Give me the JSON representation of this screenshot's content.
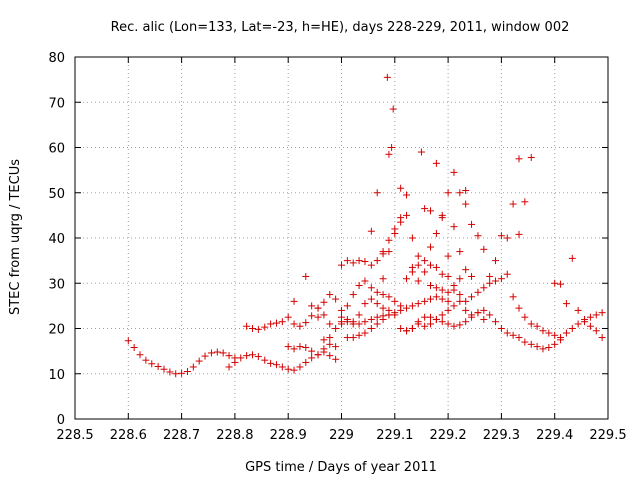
{
  "chart_data": {
    "type": "scatter",
    "title": "Rec. alic (Lon=133, Lat=-23, h=HE), days 228-229, 2011, window 002",
    "xlabel": "GPS time / Days of year 2011",
    "ylabel": "STEC from uqrg / TECUs",
    "xlim": [
      228.5,
      229.5
    ],
    "ylim": [
      0,
      80
    ],
    "xticks": [
      228.5,
      228.6,
      228.7,
      228.8,
      228.9,
      229,
      229.1,
      229.2,
      229.3,
      229.4,
      229.5
    ],
    "xtick_labels": [
      "228.5",
      "228.6",
      "228.7",
      "228.8",
      "228.9",
      "229",
      "229.1",
      "229.2",
      "229.3",
      "229.4",
      "229.5"
    ],
    "yticks": [
      0,
      10,
      20,
      30,
      40,
      50,
      60,
      70,
      80
    ],
    "ytick_labels": [
      "0",
      "10",
      "20",
      "30",
      "40",
      "50",
      "60",
      "70",
      "80"
    ],
    "grid": true,
    "marker": "+",
    "color": "#d40000",
    "series": [
      {
        "name": "STEC",
        "points": [
          [
            228.6,
            17.3
          ],
          [
            228.611,
            15.8
          ],
          [
            228.622,
            14.2
          ],
          [
            228.633,
            13.0
          ],
          [
            228.644,
            12.2
          ],
          [
            228.656,
            11.6
          ],
          [
            228.667,
            11.0
          ],
          [
            228.678,
            10.4
          ],
          [
            228.689,
            10.0
          ],
          [
            228.7,
            10.1
          ],
          [
            228.711,
            10.5
          ],
          [
            228.722,
            11.5
          ],
          [
            228.733,
            12.8
          ],
          [
            228.744,
            13.9
          ],
          [
            228.756,
            14.6
          ],
          [
            228.767,
            14.8
          ],
          [
            228.778,
            14.6
          ],
          [
            228.789,
            14.0
          ],
          [
            228.8,
            13.5
          ],
          [
            228.789,
            11.5
          ],
          [
            228.8,
            12.5
          ],
          [
            228.811,
            13.5
          ],
          [
            228.822,
            14.0
          ],
          [
            228.833,
            14.2
          ],
          [
            228.844,
            13.8
          ],
          [
            228.856,
            13.0
          ],
          [
            228.867,
            12.3
          ],
          [
            228.878,
            12.0
          ],
          [
            228.889,
            11.5
          ],
          [
            228.9,
            11.0
          ],
          [
            228.911,
            10.8
          ],
          [
            228.922,
            11.5
          ],
          [
            228.933,
            12.5
          ],
          [
            228.944,
            13.5
          ],
          [
            228.956,
            14.2
          ],
          [
            228.967,
            14.8
          ],
          [
            228.978,
            14.0
          ],
          [
            228.989,
            13.2
          ],
          [
            228.822,
            20.5
          ],
          [
            228.833,
            20.0
          ],
          [
            228.844,
            19.8
          ],
          [
            228.856,
            20.3
          ],
          [
            228.867,
            21.0
          ],
          [
            228.878,
            21.2
          ],
          [
            228.889,
            21.5
          ],
          [
            228.9,
            22.5
          ],
          [
            228.911,
            21.0
          ],
          [
            228.922,
            20.5
          ],
          [
            228.933,
            21.3
          ],
          [
            228.944,
            22.8
          ],
          [
            228.956,
            24.5
          ],
          [
            228.967,
            25.8
          ],
          [
            228.978,
            27.5
          ],
          [
            228.989,
            26.5
          ],
          [
            228.9,
            16.0
          ],
          [
            228.911,
            15.5
          ],
          [
            228.922,
            16.0
          ],
          [
            228.933,
            15.8
          ],
          [
            228.944,
            15.0
          ],
          [
            228.956,
            14.2
          ],
          [
            228.967,
            15.5
          ],
          [
            228.978,
            16.5
          ],
          [
            228.989,
            16.0
          ],
          [
            228.911,
            26.0
          ],
          [
            228.933,
            31.5
          ],
          [
            228.944,
            25.0
          ],
          [
            228.956,
            24.5
          ],
          [
            228.967,
            23.0
          ],
          [
            228.978,
            21.0
          ],
          [
            228.989,
            20.0
          ],
          [
            228.956,
            22.5
          ],
          [
            228.978,
            18.0
          ],
          [
            228.967,
            17.5
          ],
          [
            229.0,
            21.0
          ],
          [
            229.011,
            22.0
          ],
          [
            229.022,
            21.5
          ],
          [
            229.033,
            21.0
          ],
          [
            229.044,
            21.5
          ],
          [
            229.056,
            22.0
          ],
          [
            229.067,
            22.5
          ],
          [
            229.078,
            22.8
          ],
          [
            229.089,
            23.0
          ],
          [
            229.1,
            23.5
          ],
          [
            229.111,
            24.0
          ],
          [
            229.122,
            24.5
          ],
          [
            229.133,
            25.0
          ],
          [
            229.144,
            25.5
          ],
          [
            229.156,
            26.0
          ],
          [
            229.167,
            26.5
          ],
          [
            229.178,
            27.0
          ],
          [
            229.189,
            26.5
          ],
          [
            229.2,
            26.0
          ],
          [
            229.0,
            24.0
          ],
          [
            229.011,
            25.0
          ],
          [
            229.022,
            27.5
          ],
          [
            229.033,
            29.5
          ],
          [
            229.044,
            30.5
          ],
          [
            229.056,
            29.0
          ],
          [
            229.067,
            28.0
          ],
          [
            229.078,
            27.5
          ],
          [
            229.089,
            27.0
          ],
          [
            229.1,
            26.0
          ],
          [
            229.111,
            25.0
          ],
          [
            229.0,
            34.0
          ],
          [
            229.011,
            35.0
          ],
          [
            229.022,
            34.5
          ],
          [
            229.033,
            35.0
          ],
          [
            229.044,
            34.8
          ],
          [
            229.056,
            34.0
          ],
          [
            229.067,
            35.0
          ],
          [
            229.078,
            36.5
          ],
          [
            229.089,
            37.0
          ],
          [
            229.0,
            21.5
          ],
          [
            229.011,
            18.0
          ],
          [
            229.022,
            18.0
          ],
          [
            229.033,
            18.5
          ],
          [
            229.044,
            19.0
          ],
          [
            229.056,
            20.0
          ],
          [
            229.067,
            21.0
          ],
          [
            229.078,
            22.0
          ],
          [
            229.089,
            23.0
          ],
          [
            229.1,
            23.0
          ],
          [
            229.111,
            20.0
          ],
          [
            229.122,
            19.5
          ],
          [
            229.133,
            20.0
          ],
          [
            229.144,
            21.5
          ],
          [
            229.156,
            22.5
          ],
          [
            229.167,
            22.5
          ],
          [
            229.178,
            22.0
          ],
          [
            229.189,
            21.5
          ],
          [
            229.2,
            21.0
          ],
          [
            229.211,
            20.5
          ],
          [
            229.222,
            20.8
          ],
          [
            229.233,
            21.5
          ],
          [
            229.244,
            22.5
          ],
          [
            229.256,
            23.5
          ],
          [
            229.267,
            24.0
          ],
          [
            229.278,
            23.0
          ],
          [
            229.289,
            21.5
          ],
          [
            229.3,
            20.0
          ],
          [
            229.311,
            19.0
          ],
          [
            229.322,
            18.5
          ],
          [
            229.333,
            18.0
          ],
          [
            229.344,
            17.0
          ],
          [
            229.356,
            16.5
          ],
          [
            229.367,
            16.0
          ],
          [
            229.378,
            15.5
          ],
          [
            229.389,
            15.8
          ],
          [
            229.4,
            16.5
          ],
          [
            229.411,
            17.5
          ],
          [
            229.056,
            41.5
          ],
          [
            229.067,
            50.0
          ],
          [
            229.078,
            31.0
          ],
          [
            229.089,
            39.5
          ],
          [
            229.1,
            41.0
          ],
          [
            229.111,
            43.5
          ],
          [
            229.122,
            49.5
          ],
          [
            229.133,
            40.0
          ],
          [
            229.144,
            30.5
          ],
          [
            229.156,
            32.5
          ],
          [
            229.167,
            38.0
          ],
          [
            229.178,
            41.0
          ],
          [
            229.189,
            44.5
          ],
          [
            229.2,
            50.0
          ],
          [
            229.211,
            42.5
          ],
          [
            229.222,
            50.0
          ],
          [
            229.233,
            47.5
          ],
          [
            229.244,
            43.0
          ],
          [
            229.256,
            40.5
          ],
          [
            229.267,
            37.5
          ],
          [
            229.278,
            31.5
          ],
          [
            229.289,
            35.0
          ],
          [
            229.3,
            40.5
          ],
          [
            229.311,
            40.0
          ],
          [
            229.322,
            47.5
          ],
          [
            229.333,
            40.8
          ],
          [
            229.344,
            48.0
          ],
          [
            229.356,
            57.8
          ],
          [
            229.333,
            57.5
          ],
          [
            229.078,
            37.0
          ],
          [
            229.089,
            58.5
          ],
          [
            229.094,
            60.0
          ],
          [
            229.097,
            68.5
          ],
          [
            229.086,
            75.5
          ],
          [
            229.1,
            42.0
          ],
          [
            229.111,
            44.5
          ],
          [
            229.111,
            51.0
          ],
          [
            229.122,
            45.0
          ],
          [
            229.133,
            33.5
          ],
          [
            229.144,
            34.0
          ],
          [
            229.15,
            59.0
          ],
          [
            229.156,
            46.5
          ],
          [
            229.167,
            46.0
          ],
          [
            229.178,
            56.5
          ],
          [
            229.189,
            45.0
          ],
          [
            229.2,
            36.0
          ],
          [
            229.211,
            54.5
          ],
          [
            229.222,
            37.0
          ],
          [
            229.233,
            50.5
          ],
          [
            229.122,
            31.0
          ],
          [
            229.133,
            32.5
          ],
          [
            229.144,
            36.0
          ],
          [
            229.156,
            35.0
          ],
          [
            229.167,
            34.0
          ],
          [
            229.178,
            33.5
          ],
          [
            229.189,
            32.0
          ],
          [
            229.2,
            31.5
          ],
          [
            229.211,
            28.5
          ],
          [
            229.222,
            27.5
          ],
          [
            229.233,
            26.0
          ],
          [
            229.244,
            27.0
          ],
          [
            229.256,
            28.0
          ],
          [
            229.267,
            29.0
          ],
          [
            229.278,
            30.0
          ],
          [
            229.289,
            30.5
          ],
          [
            229.3,
            31.0
          ],
          [
            229.311,
            32.0
          ],
          [
            229.322,
            27.0
          ],
          [
            229.333,
            24.5
          ],
          [
            229.344,
            22.5
          ],
          [
            229.356,
            21.0
          ],
          [
            229.367,
            20.5
          ],
          [
            229.378,
            19.5
          ],
          [
            229.389,
            19.0
          ],
          [
            229.4,
            18.5
          ],
          [
            229.411,
            18.0
          ],
          [
            229.422,
            19.0
          ],
          [
            229.433,
            20.0
          ],
          [
            229.444,
            21.0
          ],
          [
            229.456,
            22.0
          ],
          [
            229.467,
            22.5
          ],
          [
            229.478,
            23.0
          ],
          [
            229.489,
            23.5
          ],
          [
            229.4,
            30.0
          ],
          [
            229.411,
            29.8
          ],
          [
            229.422,
            25.5
          ],
          [
            229.433,
            35.5
          ],
          [
            229.444,
            24.0
          ],
          [
            229.456,
            21.5
          ],
          [
            229.467,
            20.5
          ],
          [
            229.478,
            19.5
          ],
          [
            229.489,
            18.0
          ],
          [
            229.122,
            19.5
          ],
          [
            229.133,
            20.0
          ],
          [
            229.144,
            21.0
          ],
          [
            229.156,
            20.5
          ],
          [
            229.167,
            21.0
          ],
          [
            229.178,
            22.0
          ],
          [
            229.189,
            23.0
          ],
          [
            229.2,
            24.0
          ],
          [
            229.211,
            25.0
          ],
          [
            229.222,
            26.0
          ],
          [
            229.233,
            24.0
          ],
          [
            229.244,
            23.0
          ],
          [
            229.256,
            23.5
          ],
          [
            229.267,
            22.0
          ],
          [
            229.167,
            29.5
          ],
          [
            229.178,
            29.0
          ],
          [
            229.189,
            28.5
          ],
          [
            229.2,
            28.0
          ],
          [
            229.211,
            29.5
          ],
          [
            229.222,
            31.0
          ],
          [
            229.233,
            33.0
          ],
          [
            229.244,
            31.5
          ],
          [
            229.0,
            22.5
          ],
          [
            229.011,
            21.5
          ],
          [
            229.022,
            21.0
          ],
          [
            229.033,
            23.0
          ],
          [
            229.044,
            25.5
          ],
          [
            229.056,
            26.5
          ],
          [
            229.067,
            25.5
          ],
          [
            229.078,
            24.5
          ],
          [
            229.089,
            24.0
          ]
        ]
      }
    ]
  }
}
